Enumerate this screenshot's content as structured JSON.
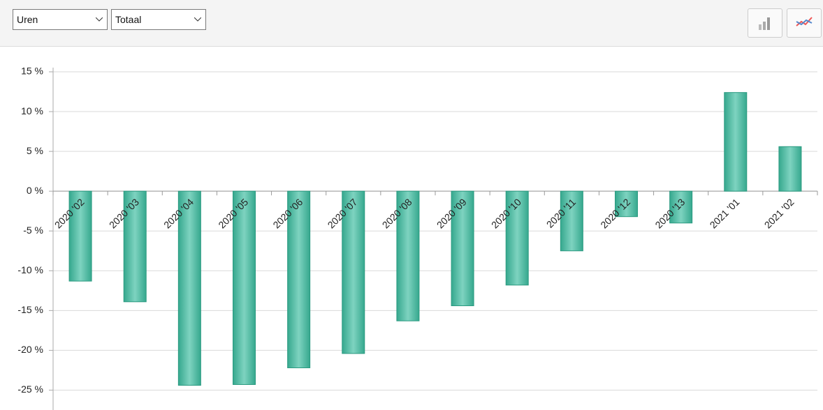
{
  "toolbar": {
    "selects": [
      "Uren",
      "Totaal"
    ]
  },
  "chart_data": {
    "type": "bar",
    "categories": [
      "2020 '02",
      "2020 '03",
      "2020 '04",
      "2020 '05",
      "2020 '06",
      "2020 '07",
      "2020 '08",
      "2020 '09",
      "2020 '10",
      "2020 '11",
      "2020 '12",
      "2020 '13",
      "2021 '01",
      "2021 '02"
    ],
    "values": [
      -11.3,
      -13.9,
      -24.4,
      -24.3,
      -22.2,
      -20.4,
      -16.3,
      -14.4,
      -11.8,
      -7.5,
      -3.2,
      -4.0,
      12.4,
      5.6
    ],
    "color": "#3fb59a",
    "ylim": [
      -27.5,
      15
    ],
    "yticks": [
      {
        "value": 15,
        "label": "15 %"
      },
      {
        "value": 10,
        "label": "10 %"
      },
      {
        "value": 5,
        "label": "5 %"
      },
      {
        "value": 0,
        "label": "0 %"
      },
      {
        "value": -5,
        "label": "-5 %"
      },
      {
        "value": -10,
        "label": "-10 %"
      },
      {
        "value": -15,
        "label": "-15 %"
      },
      {
        "value": -20,
        "label": "-20 %"
      },
      {
        "value": -25,
        "label": "-25 %"
      }
    ],
    "grid": true
  }
}
